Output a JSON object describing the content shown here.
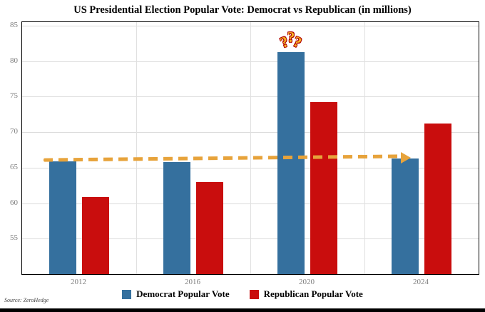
{
  "source": "Source: ZeroHedge",
  "colors": {
    "democrat": "#35709E",
    "republican": "#C90D0D",
    "arrow": "#E7A33B",
    "grid": "#DCDCDC",
    "axis_labels": "#7F7F7F"
  },
  "chart_data": {
    "type": "bar",
    "title": "US Presidential Election Popular Vote: Democrat vs Republican (in millions)",
    "categories": [
      "2012",
      "2016",
      "2020",
      "2024"
    ],
    "series": [
      {
        "name": "Democrat Popular Vote",
        "color": "#35709E",
        "values": [
          65.9,
          65.8,
          81.3,
          66.3
        ]
      },
      {
        "name": "Republican Popular Vote",
        "color": "#C90D0D",
        "values": [
          60.9,
          63.0,
          74.2,
          71.2
        ]
      }
    ],
    "xlabel": "",
    "ylabel": "",
    "ylim": [
      50,
      85.5
    ],
    "yticks": [
      55,
      60,
      65,
      70,
      75,
      80,
      85
    ],
    "grid": true,
    "legend_position": "bottom",
    "annotations": [
      {
        "id": "question-marks",
        "text": "???",
        "above_category": "2020",
        "series": "Democrat Popular Vote"
      },
      {
        "id": "trend-arrow",
        "style": "dashed-arrow",
        "color": "#E7A33B",
        "from": {
          "category": "2012",
          "value": 66.0
        },
        "to": {
          "category": "2024",
          "value": 66.3
        },
        "meaning": "Democrat popular vote roughly flat 2012 to 2024"
      }
    ]
  }
}
